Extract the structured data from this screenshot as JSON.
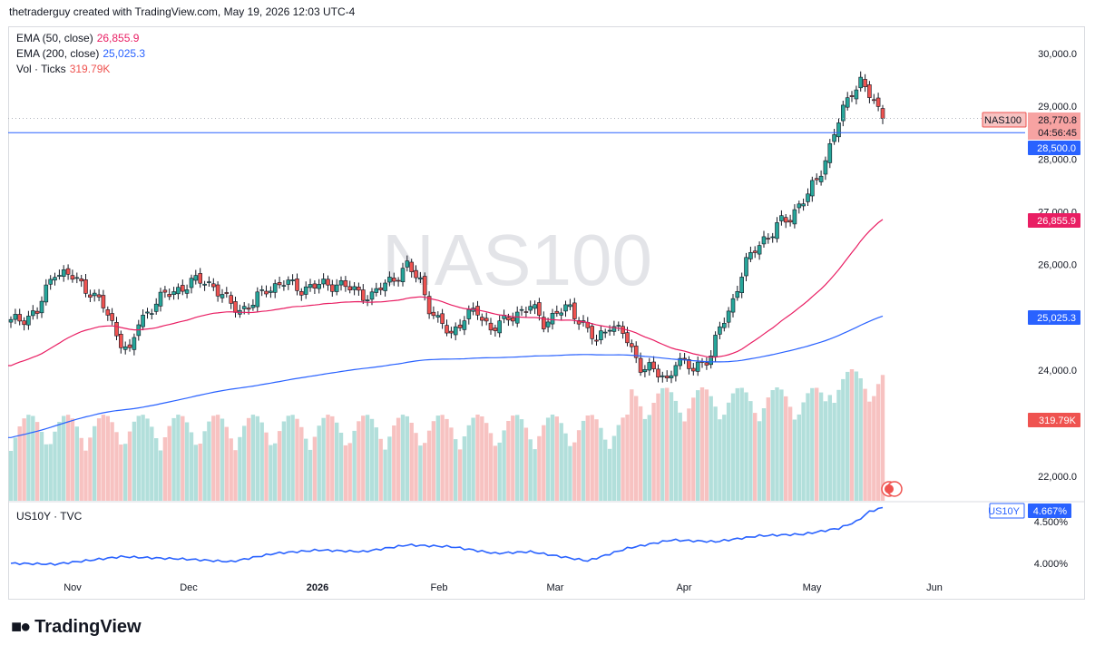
{
  "header": {
    "text": "thetraderguy created with TradingView.com, May 19, 2026 12:03 UTC-4"
  },
  "watermark": "NAS100",
  "legend": {
    "ema50_label": "EMA (50, close)",
    "ema50_value": "26,855.9",
    "ema200_label": "EMA (200, close)",
    "ema200_value": "25,025.3",
    "vol_label": "Vol · Ticks",
    "vol_value": "319.79K"
  },
  "lower_legend": {
    "label": "US10Y · TVC"
  },
  "badges": {
    "symbol": "NAS100",
    "price": "28,770.8",
    "countdown": "04:56:45",
    "hline": "28,500.0",
    "ema50": "26,855.9",
    "ema200": "25,025.3",
    "vol": "319.79K",
    "us10y_symbol": "US10Y",
    "us10y_value": "4.667%"
  },
  "price_axis": [
    "30,000.0",
    "29,000.0",
    "28,000.0",
    "27,000.0",
    "26,000.0",
    "24,000.0",
    "22,000.0"
  ],
  "yield_axis": [
    "4.500%",
    "4.000%"
  ],
  "time_axis": [
    "Nov",
    "Dec",
    "2026",
    "Feb",
    "Mar",
    "Apr",
    "May",
    "Jun"
  ],
  "logo": {
    "text": "TradingView"
  },
  "colors": {
    "up": "#26a69a",
    "down": "#ef5350",
    "ema50": "#e91e63",
    "ema200": "#2962ff",
    "hline": "#2962ff",
    "vol_up": "#b2dfdb",
    "vol_down": "#f7c2c1",
    "yield": "#2962ff"
  },
  "chart_data": {
    "type": "candlestick",
    "series": [
      {
        "name": "NAS100",
        "anchors_close": [
          [
            0,
            24900
          ],
          [
            6,
            25100
          ],
          [
            10,
            25900
          ],
          [
            14,
            25750
          ],
          [
            18,
            25500
          ],
          [
            21,
            25200
          ],
          [
            24,
            24700
          ],
          [
            27,
            24300
          ],
          [
            29,
            24900
          ],
          [
            33,
            25300
          ],
          [
            37,
            25500
          ],
          [
            41,
            25650
          ],
          [
            44,
            25700
          ],
          [
            46,
            25600
          ],
          [
            49,
            25300
          ],
          [
            52,
            25150
          ],
          [
            55,
            25250
          ],
          [
            58,
            25550
          ],
          [
            62,
            25650
          ],
          [
            66,
            25550
          ],
          [
            70,
            25600
          ],
          [
            74,
            25650
          ],
          [
            78,
            25500
          ],
          [
            82,
            25400
          ],
          [
            86,
            25700
          ],
          [
            90,
            25950
          ],
          [
            93,
            25700
          ],
          [
            95,
            25200
          ],
          [
            97,
            24900
          ],
          [
            100,
            24700
          ],
          [
            103,
            25000
          ],
          [
            106,
            25100
          ],
          [
            109,
            24800
          ],
          [
            112,
            24900
          ],
          [
            115,
            25100
          ],
          [
            118,
            25200
          ],
          [
            121,
            24900
          ],
          [
            124,
            25100
          ],
          [
            127,
            25150
          ],
          [
            130,
            24900
          ],
          [
            133,
            24500
          ],
          [
            136,
            24900
          ],
          [
            139,
            24700
          ],
          [
            141,
            24350
          ],
          [
            143,
            24100
          ],
          [
            145,
            24050
          ],
          [
            147,
            23900
          ],
          [
            149,
            23800
          ],
          [
            151,
            24200
          ],
          [
            153,
            24100
          ],
          [
            155,
            24000
          ],
          [
            157,
            24200
          ],
          [
            159,
            24250
          ],
          [
            161,
            24800
          ],
          [
            163,
            25100
          ],
          [
            165,
            25600
          ],
          [
            167,
            26000
          ],
          [
            169,
            26300
          ],
          [
            171,
            26500
          ],
          [
            173,
            26600
          ],
          [
            175,
            26800
          ],
          [
            177,
            26900
          ],
          [
            179,
            27150
          ],
          [
            181,
            27300
          ],
          [
            183,
            27600
          ],
          [
            185,
            28000
          ],
          [
            187,
            28500
          ],
          [
            189,
            28900
          ],
          [
            191,
            29300
          ],
          [
            193,
            29500
          ],
          [
            195,
            29200
          ],
          [
            197,
            28900
          ],
          [
            198,
            28770.8
          ]
        ]
      },
      {
        "name": "EMA (50, close)",
        "last": 26855.9
      },
      {
        "name": "EMA (200, close)",
        "last": 25025.3
      },
      {
        "name": "Vol · Ticks",
        "last": "319.79K"
      },
      {
        "name": "US10Y · TVC",
        "last": "4.667%"
      }
    ],
    "horizontal_line": 28500.0,
    "last_price": 28770.8,
    "ylim": [
      21500,
      30500
    ],
    "yield_ylim": [
      3.85,
      4.72
    ]
  }
}
